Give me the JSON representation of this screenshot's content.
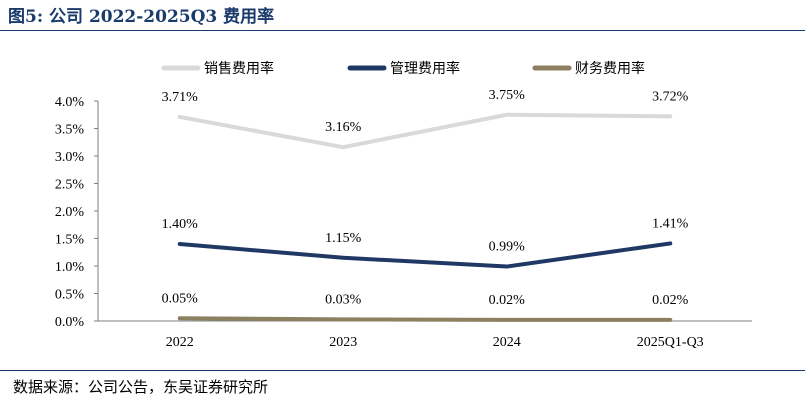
{
  "title": "图5:  公司 2022-2025Q3 费用率",
  "source": "数据来源：公司公告，东吴证券研究所",
  "chart_data": {
    "type": "line",
    "categories": [
      "2022",
      "2023",
      "2024",
      "2025Q1-Q3"
    ],
    "ylim": [
      0,
      4.0
    ],
    "yticks": [
      "0.0%",
      "0.5%",
      "1.0%",
      "1.5%",
      "2.0%",
      "2.5%",
      "3.0%",
      "3.5%",
      "4.0%"
    ],
    "grid": false,
    "legend_position": "top",
    "series": [
      {
        "name": "销售费用率",
        "color": "#d9d9d9",
        "values": [
          3.71,
          3.16,
          3.75,
          3.72
        ],
        "labels": [
          "3.71%",
          "3.16%",
          "3.75%",
          "3.72%"
        ]
      },
      {
        "name": "管理费用率",
        "color": "#1f3864",
        "values": [
          1.4,
          1.15,
          0.99,
          1.41
        ],
        "labels": [
          "1.40%",
          "1.15%",
          "0.99%",
          "1.41%"
        ]
      },
      {
        "name": "财务费用率",
        "color": "#8c8060",
        "values": [
          0.05,
          0.03,
          0.02,
          0.02
        ],
        "labels": [
          "0.05%",
          "0.03%",
          "0.02%",
          "0.02%"
        ]
      }
    ]
  }
}
